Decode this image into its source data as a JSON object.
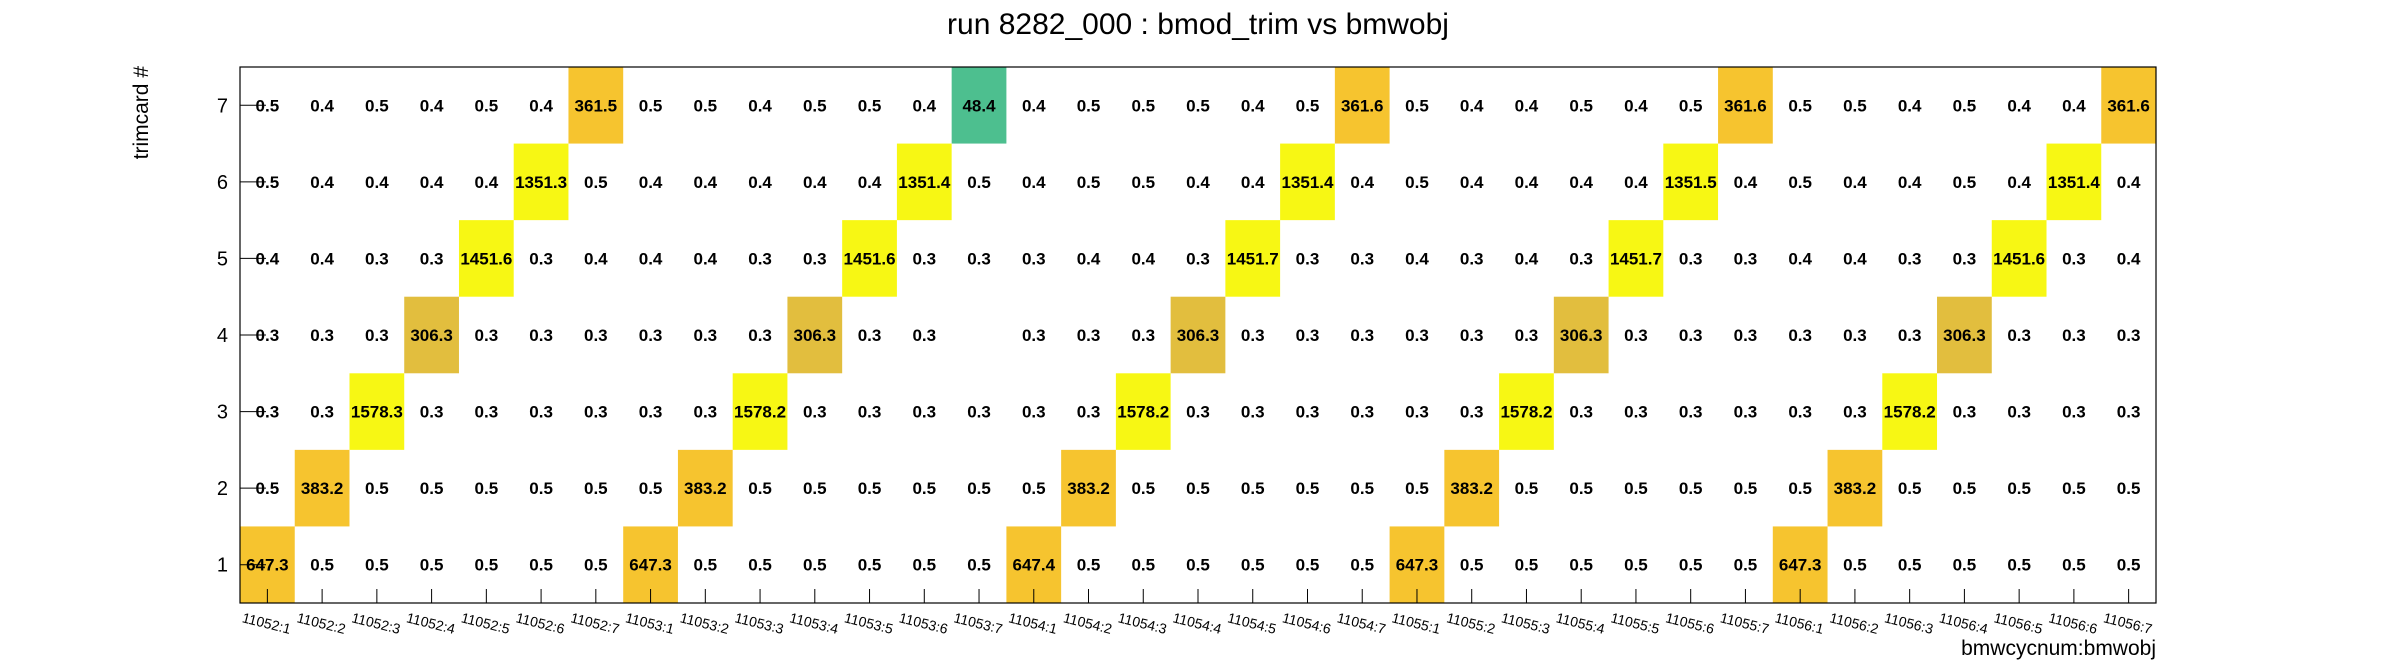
{
  "chart_data": {
    "type": "heatmap",
    "title": "run 8282_000 : bmod_trim vs bmwobj",
    "xlabel": "bmwcycnum:bmwobj",
    "ylabel": "trimcard #",
    "x_categories": [
      "11052:1",
      "11052:2",
      "11052:3",
      "11052:4",
      "11052:5",
      "11052:6",
      "11052:7",
      "11053:1",
      "11053:2",
      "11053:3",
      "11053:4",
      "11053:5",
      "11053:6",
      "11053:7",
      "11054:1",
      "11054:2",
      "11054:3",
      "11054:4",
      "11054:5",
      "11054:6",
      "11054:7",
      "11055:1",
      "11055:2",
      "11055:3",
      "11055:4",
      "11055:5",
      "11055:6",
      "11055:7",
      "11056:1",
      "11056:2",
      "11056:3",
      "11056:4",
      "11056:5",
      "11056:6",
      "11056:7"
    ],
    "y_categories": [
      "1",
      "2",
      "3",
      "4",
      "5",
      "6",
      "7"
    ],
    "values": [
      [
        "647.3",
        "0.5",
        "0.5",
        "0.5",
        "0.5",
        "0.5",
        "0.5",
        "647.3",
        "0.5",
        "0.5",
        "0.5",
        "0.5",
        "0.5",
        "0.5",
        "647.4",
        "0.5",
        "0.5",
        "0.5",
        "0.5",
        "0.5",
        "0.5",
        "647.3",
        "0.5",
        "0.5",
        "0.5",
        "0.5",
        "0.5",
        "0.5",
        "647.3",
        "0.5",
        "0.5",
        "0.5",
        "0.5",
        "0.5",
        "0.5"
      ],
      [
        "0.5",
        "383.2",
        "0.5",
        "0.5",
        "0.5",
        "0.5",
        "0.5",
        "0.5",
        "383.2",
        "0.5",
        "0.5",
        "0.5",
        "0.5",
        "0.5",
        "0.5",
        "383.2",
        "0.5",
        "0.5",
        "0.5",
        "0.5",
        "0.5",
        "0.5",
        "383.2",
        "0.5",
        "0.5",
        "0.5",
        "0.5",
        "0.5",
        "0.5",
        "383.2",
        "0.5",
        "0.5",
        "0.5",
        "0.5",
        "0.5"
      ],
      [
        "0.3",
        "0.3",
        "1578.3",
        "0.3",
        "0.3",
        "0.3",
        "0.3",
        "0.3",
        "0.3",
        "1578.2",
        "0.3",
        "0.3",
        "0.3",
        "0.3",
        "0.3",
        "0.3",
        "1578.2",
        "0.3",
        "0.3",
        "0.3",
        "0.3",
        "0.3",
        "0.3",
        "1578.2",
        "0.3",
        "0.3",
        "0.3",
        "0.3",
        "0.3",
        "0.3",
        "1578.2",
        "0.3",
        "0.3",
        "0.3",
        "0.3"
      ],
      [
        "0.3",
        "0.3",
        "0.3",
        "306.3",
        "0.3",
        "0.3",
        "0.3",
        "0.3",
        "0.3",
        "0.3",
        "306.3",
        "0.3",
        "0.3",
        "",
        "0.3",
        "0.3",
        "0.3",
        "306.3",
        "0.3",
        "0.3",
        "0.3",
        "0.3",
        "0.3",
        "0.3",
        "306.3",
        "0.3",
        "0.3",
        "0.3",
        "0.3",
        "0.3",
        "0.3",
        "306.3",
        "0.3",
        "0.3",
        "0.3"
      ],
      [
        "0.4",
        "0.4",
        "0.3",
        "0.3",
        "1451.6",
        "0.3",
        "0.4",
        "0.4",
        "0.4",
        "0.3",
        "0.3",
        "1451.6",
        "0.3",
        "0.3",
        "0.3",
        "0.4",
        "0.4",
        "0.3",
        "1451.7",
        "0.3",
        "0.3",
        "0.4",
        "0.3",
        "0.4",
        "0.3",
        "1451.7",
        "0.3",
        "0.3",
        "0.4",
        "0.4",
        "0.3",
        "0.3",
        "1451.6",
        "0.3",
        "0.4"
      ],
      [
        "0.5",
        "0.4",
        "0.4",
        "0.4",
        "0.4",
        "1351.3",
        "0.5",
        "0.4",
        "0.4",
        "0.4",
        "0.4",
        "0.4",
        "1351.4",
        "0.5",
        "0.4",
        "0.5",
        "0.5",
        "0.4",
        "0.4",
        "1351.4",
        "0.4",
        "0.5",
        "0.4",
        "0.4",
        "0.4",
        "0.4",
        "1351.5",
        "0.4",
        "0.5",
        "0.4",
        "0.4",
        "0.5",
        "0.4",
        "1351.4",
        "0.4"
      ],
      [
        "0.5",
        "0.4",
        "0.5",
        "0.4",
        "0.5",
        "0.4",
        "361.5",
        "0.5",
        "0.5",
        "0.4",
        "0.5",
        "0.5",
        "0.4",
        "48.4",
        "0.4",
        "0.5",
        "0.5",
        "0.5",
        "0.4",
        "0.5",
        "361.6",
        "0.5",
        "0.4",
        "0.4",
        "0.5",
        "0.4",
        "0.5",
        "361.6",
        "0.5",
        "0.5",
        "0.4",
        "0.5",
        "0.4",
        "0.4",
        "361.6"
      ]
    ],
    "cell_colors": {
      "1578": "#f7f714",
      "1451": "#f7f714",
      "1351": "#f7f714",
      "647": "#f6c42f",
      "383": "#f6c42f",
      "361": "#f6c42f",
      "306": "#e2be3e",
      "48": "#4dbf8f"
    },
    "grid": false,
    "legend": "none"
  }
}
